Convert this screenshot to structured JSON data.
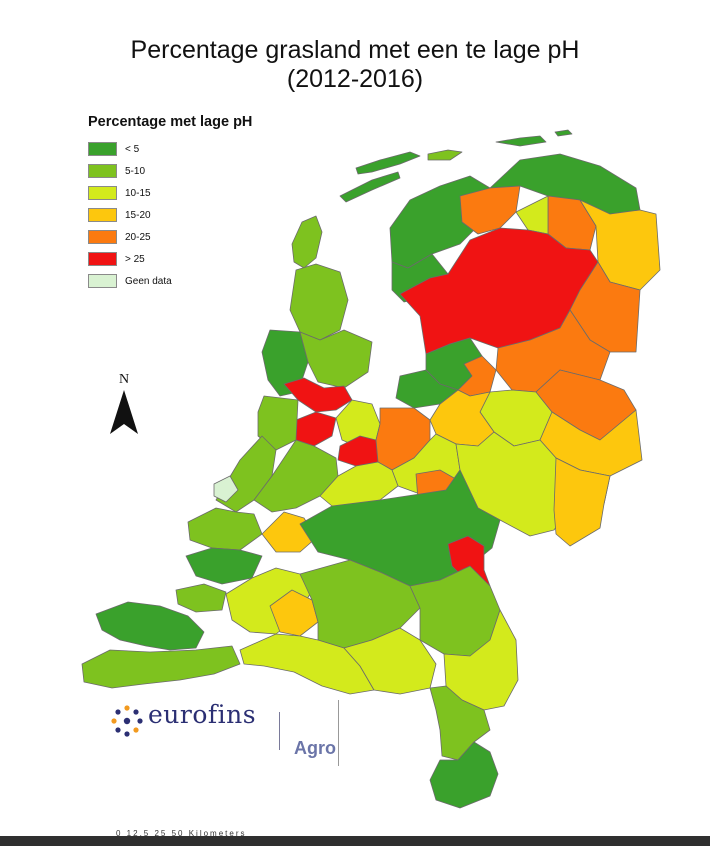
{
  "title": {
    "line1": "Percentage grasland met een te lage pH",
    "line2": "(2012-2016)"
  },
  "legend": {
    "title": "Percentage met lage pH",
    "items": [
      {
        "label": "<  5",
        "color": "#3aa12c"
      },
      {
        "label": "5-10",
        "color": "#7ec21f"
      },
      {
        "label": "10-15",
        "color": "#d3ea1c"
      },
      {
        "label": "15-20",
        "color": "#fdc70d"
      },
      {
        "label": "20-25",
        "color": "#fb7a10"
      },
      {
        "label": "> 25",
        "color": "#f01313"
      },
      {
        "label": "Geen data",
        "color": "#d9f2d2"
      }
    ]
  },
  "north_arrow": {
    "letter": "N",
    "icon": "north-arrow-icon"
  },
  "logo": {
    "brand": "eurofins",
    "division": "Agro"
  },
  "scale_bar": {
    "text": "0   12,5   25          50 Kilometers"
  },
  "map": {
    "water_color": "#ffffff",
    "border_color": "#6b6b6b"
  }
}
